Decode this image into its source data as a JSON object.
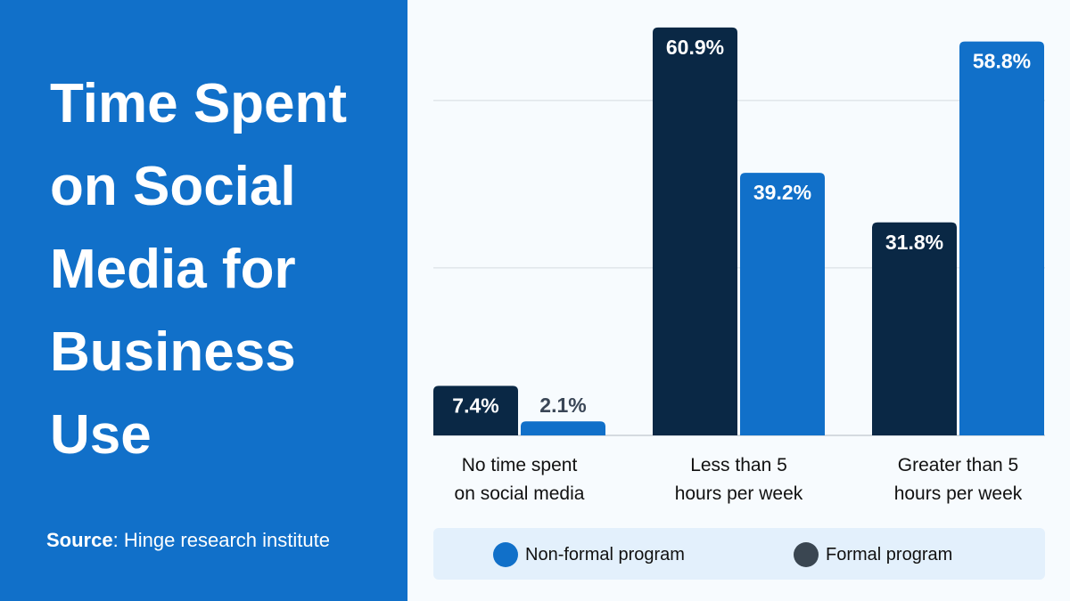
{
  "title": "Time Spent on Social Media for Business Use",
  "source": {
    "label": "Source",
    "text": ": Hinge research institute"
  },
  "colors": {
    "panel": "#1170c9",
    "formal": "#0a2845",
    "non_formal": "#1170c9",
    "legend_formal_dot": "#3a4651",
    "label_outside": "#3a4656"
  },
  "chart_data": {
    "type": "bar",
    "categories": [
      "No time spent on social media",
      "Less than 5 hours per week",
      "Greater than 5 hours per week"
    ],
    "category_lines": [
      [
        "No time spent",
        "on social media"
      ],
      [
        "Less than 5",
        "hours per week"
      ],
      [
        "Greater than 5",
        "hours per week"
      ]
    ],
    "series": [
      {
        "name": "Formal program",
        "values": [
          7.4,
          60.9,
          31.8
        ],
        "labels": [
          "7.4%",
          "60.9%",
          "31.8%"
        ]
      },
      {
        "name": "Non-formal program",
        "values": [
          2.1,
          39.2,
          58.8
        ],
        "labels": [
          "2.1%",
          "39.2%",
          "58.8%"
        ]
      }
    ],
    "ylim": [
      0,
      65
    ],
    "gridlines": [
      25,
      50
    ],
    "grid": true,
    "legend": {
      "placement": "bottom",
      "entries": [
        "Non-formal program",
        "Formal program"
      ]
    }
  }
}
